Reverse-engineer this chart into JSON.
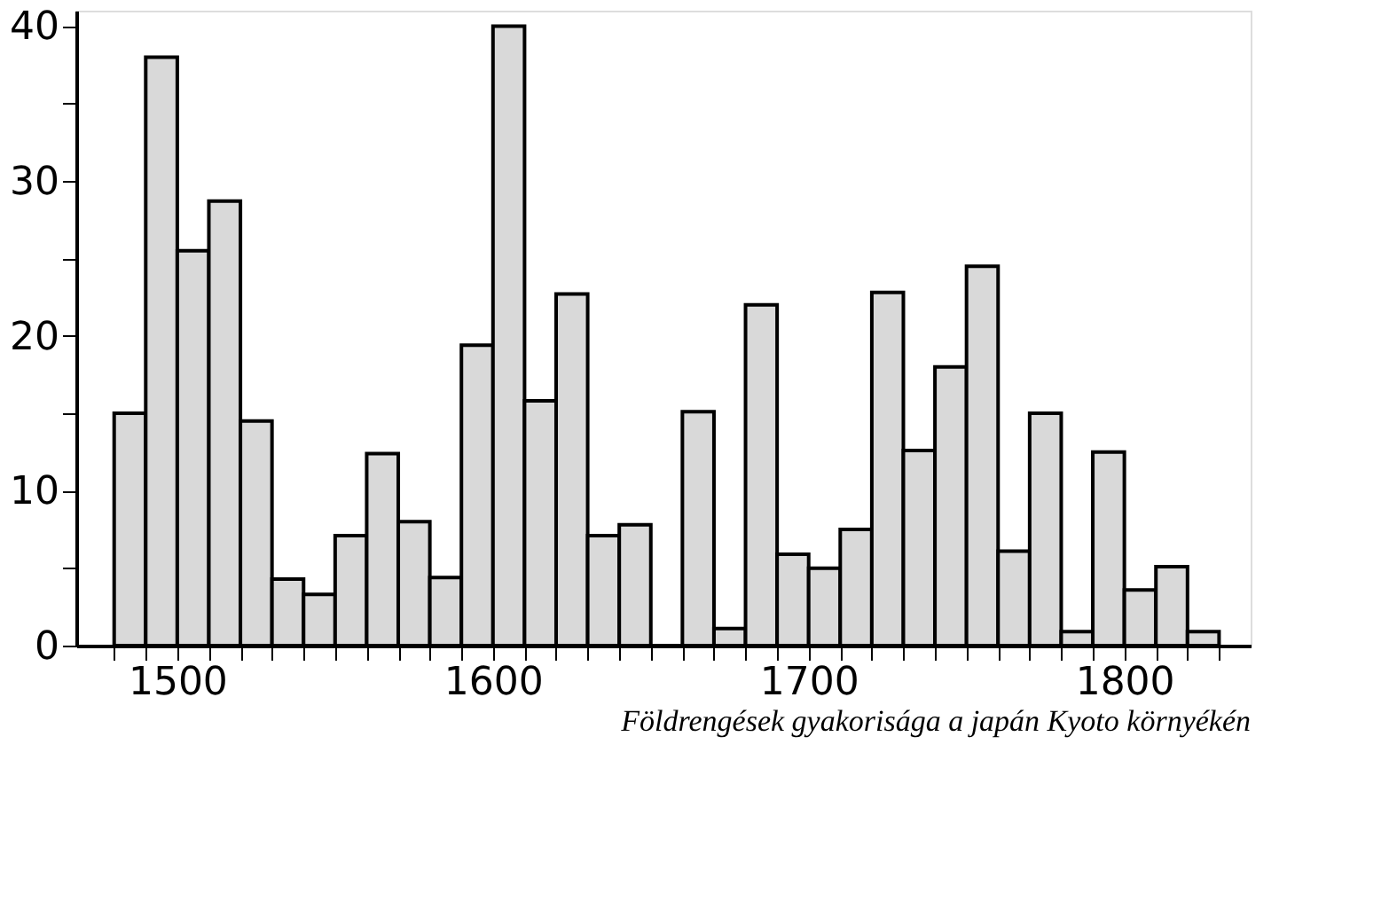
{
  "chart_data": {
    "type": "histogram",
    "bins": [
      1480,
      1490,
      1500,
      1510,
      1520,
      1530,
      1540,
      1550,
      1560,
      1570,
      1580,
      1590,
      1600,
      1610,
      1620,
      1630,
      1640,
      1650,
      1660,
      1670,
      1680,
      1690,
      1700,
      1710,
      1720,
      1730,
      1740,
      1750,
      1760,
      1770,
      1780,
      1790,
      1800,
      1810,
      1820,
      1830
    ],
    "values": [
      15,
      38,
      25.5,
      28.7,
      14.5,
      4.3,
      3.3,
      7.1,
      12.4,
      8,
      4.4,
      19.4,
      40,
      15.8,
      22.7,
      7.1,
      7.8,
      0,
      15.1,
      1.1,
      22,
      5.9,
      5,
      7.5,
      22.8,
      12.6,
      18,
      24.5,
      6.1,
      15,
      0.9,
      12.5,
      3.6,
      5.1,
      0.9
    ],
    "color": "#d9d9d9",
    "xlim": [
      1468,
      1840
    ],
    "xticks": [
      {
        "value": 1480,
        "label": null
      },
      {
        "value": 1490,
        "label": null
      },
      1500,
      {
        "value": 1510,
        "label": null
      },
      {
        "value": 1520,
        "label": null
      },
      {
        "value": 1530,
        "label": null
      },
      {
        "value": 1540,
        "label": null
      },
      {
        "value": 1550,
        "label": null
      },
      {
        "value": 1560,
        "label": null
      },
      {
        "value": 1570,
        "label": null
      },
      {
        "value": 1580,
        "label": null
      },
      {
        "value": 1590,
        "label": null
      },
      1600,
      {
        "value": 1610,
        "label": null
      },
      {
        "value": 1620,
        "label": null
      },
      {
        "value": 1630,
        "label": null
      },
      {
        "value": 1640,
        "label": null
      },
      {
        "value": 1650,
        "label": null
      },
      {
        "value": 1660,
        "label": null
      },
      {
        "value": 1670,
        "label": null
      },
      {
        "value": 1680,
        "label": null
      },
      {
        "value": 1690,
        "label": null
      },
      1700,
      {
        "value": 1710,
        "label": null
      },
      {
        "value": 1720,
        "label": null
      },
      {
        "value": 1730,
        "label": null
      },
      {
        "value": 1740,
        "label": null
      },
      {
        "value": 1750,
        "label": null
      },
      {
        "value": 1760,
        "label": null
      },
      {
        "value": 1770,
        "label": null
      },
      {
        "value": 1780,
        "label": null
      },
      {
        "value": 1790,
        "label": null
      },
      1800,
      {
        "value": 1810,
        "label": null
      },
      {
        "value": 1820,
        "label": null
      },
      {
        "value": 1830,
        "label": null
      }
    ],
    "ylim": [
      0,
      41
    ],
    "yticks": [
      0,
      {
        "value": 5,
        "label": null
      },
      10,
      {
        "value": 15,
        "label": null
      },
      20,
      {
        "value": 25,
        "label": null
      },
      30,
      {
        "value": 35,
        "label": null
      },
      40
    ],
    "grid": false,
    "annotations": [
      "Földrengések gyakorisága a japán Kyoto környékén"
    ]
  }
}
